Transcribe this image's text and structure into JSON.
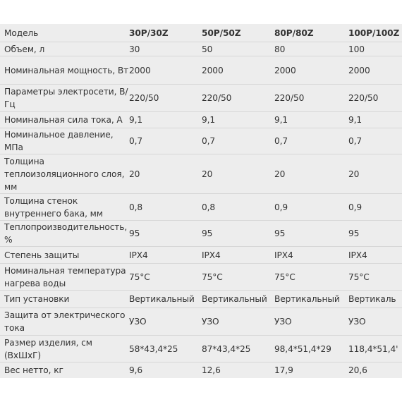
{
  "table": {
    "header": {
      "label": "Модель",
      "models": [
        "30P/30Z",
        "50P/50Z",
        "80P/80Z",
        "100P/100Z"
      ]
    },
    "rows": [
      {
        "label": "Объем, л",
        "values": [
          "30",
          "50",
          "80",
          "100"
        ]
      },
      {
        "label": "Номинальная мощность, Вт",
        "values": [
          "2000",
          "2000",
          "2000",
          "2000"
        ]
      },
      {
        "label": "Параметры электросети, В/Гц",
        "values": [
          "220/50",
          "220/50",
          "220/50",
          "220/50"
        ]
      },
      {
        "label": "Номинальная сила тока, А",
        "values": [
          "9,1",
          "9,1",
          "9,1",
          "9,1"
        ]
      },
      {
        "label": "Номинальное давление, МПа",
        "values": [
          "0,7",
          "0,7",
          "0,7",
          "0,7"
        ]
      },
      {
        "label": "Толщина теплоизоляционного слоя, мм",
        "values": [
          "20",
          "20",
          "20",
          "20"
        ]
      },
      {
        "label": "Толщина стенок внутреннего бака, мм",
        "values": [
          "0,8",
          "0,8",
          "0,9",
          "0,9"
        ]
      },
      {
        "label": "Теплопроизводительность, %",
        "values": [
          "95",
          "95",
          "95",
          "95"
        ]
      },
      {
        "label": "Степень защиты",
        "values": [
          "IPX4",
          "IPX4",
          "IPX4",
          "IPX4"
        ]
      },
      {
        "label": "Номинальная температура нагрева воды",
        "values": [
          "75°C",
          "75°C",
          "75°C",
          "75°C"
        ]
      },
      {
        "label": "Тип установки",
        "values": [
          "Вертикальный",
          "Вертикальный",
          "Вертикальный",
          "Вертикаль"
        ]
      },
      {
        "label": "Защита от электрического тока",
        "values": [
          "УЗО",
          "УЗО",
          "УЗО",
          "УЗО"
        ]
      },
      {
        "label": "Размер изделия, см (ВхШхГ)",
        "values": [
          "58*43,4*25",
          "87*43,4*25",
          "98,4*51,4*29",
          "118,4*51,4'"
        ]
      },
      {
        "label": "Вес нетто, кг",
        "values": [
          "9,6",
          "12,6",
          "17,9",
          "20,6"
        ]
      }
    ]
  }
}
